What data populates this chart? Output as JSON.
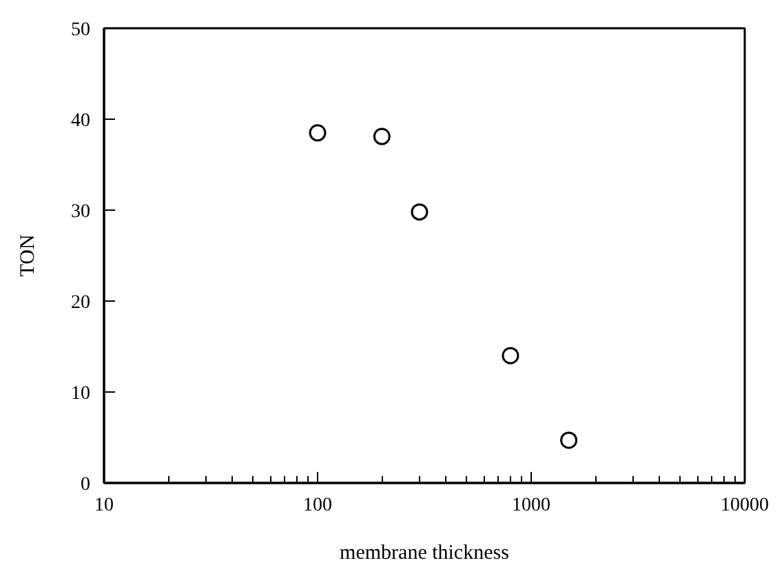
{
  "chart_data": {
    "type": "scatter",
    "xlabel": "membrane thickness",
    "ylabel": "TON",
    "x": [
      100,
      200,
      300,
      800,
      1500
    ],
    "values": [
      38.5,
      38.1,
      29.8,
      14.0,
      4.7
    ],
    "color": "#000000",
    "marker": "circle",
    "log": "x",
    "grid": false,
    "xlim": [
      10,
      10000
    ],
    "xticks": [
      10,
      100,
      1000,
      10000
    ],
    "ylim": [
      0,
      50
    ],
    "yticks": [
      0,
      10,
      20,
      30,
      40,
      50
    ]
  }
}
